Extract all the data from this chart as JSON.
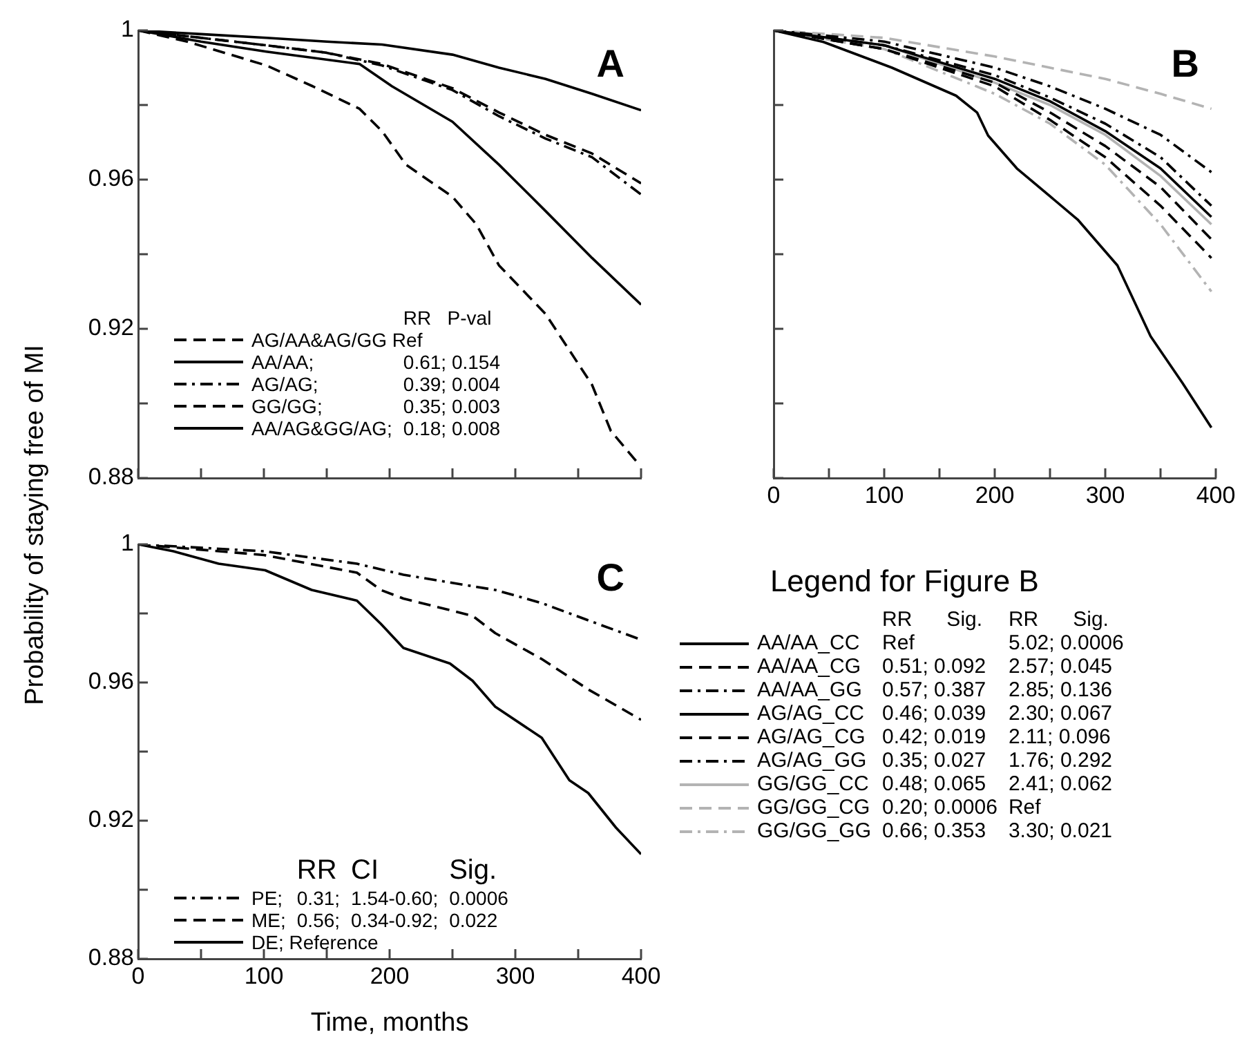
{
  "chart_data": [
    {
      "type": "line",
      "ylabel": "Probability of staying free of MI",
      "annotations": [
        "A",
        "RR   P-val"
      ],
      "legend": "bottom left",
      "tick_labels": "y",
      "grid": false,
      "xlim": [
        0,
        400
      ],
      "xticks": [
        0,
        {
          "value": 50,
          "label": null
        },
        100,
        {
          "value": 150,
          "label": null
        },
        200,
        {
          "value": 250,
          "label": null
        },
        300,
        {
          "value": 350,
          "label": null
        },
        400
      ],
      "ylim": [
        0.88,
        1
      ],
      "yticks": [
        0.88,
        {
          "value": 0.9,
          "label": null
        },
        0.92,
        {
          "value": 0.94,
          "label": null
        },
        0.96,
        {
          "value": 0.98,
          "label": null
        },
        1
      ],
      "series": [
        {
          "name": "AG/AA&AG/GG Ref",
          "color": "#000000",
          "line_style": "dashed",
          "x": [
            0,
            39,
            102,
            139,
            176,
            194,
            213,
            250,
            269,
            287,
            324,
            361,
            376,
            398
          ],
          "values": [
            1,
            0.997,
            0.9906,
            0.985,
            0.979,
            0.973,
            0.964,
            0.9554,
            0.948,
            0.937,
            0.924,
            0.905,
            0.8926,
            0.8838
          ]
        },
        {
          "name": "AA/AA;\t0.61; 0.154",
          "color": "#000000",
          "line_style": "solid",
          "x": [
            0,
            50,
            102,
            176,
            202,
            250,
            287,
            324,
            361,
            400
          ],
          "values": [
            1,
            0.997,
            0.9943,
            0.991,
            0.985,
            0.9755,
            0.964,
            0.9516,
            0.939,
            0.9265
          ]
        },
        {
          "name": "AG/AG;\t0.39; 0.004",
          "color": "#000000",
          "line_style": "dashdot",
          "x": [
            0,
            50,
            102,
            150,
            194,
            250,
            287,
            324,
            361,
            400
          ],
          "values": [
            1,
            0.998,
            0.996,
            0.994,
            0.9906,
            0.984,
            0.977,
            0.971,
            0.966,
            0.956
          ]
        },
        {
          "name": "GG/GG;\t0.35; 0.003",
          "color": "#000000",
          "line_style": "dashed",
          "x": [
            0,
            50,
            102,
            150,
            194,
            250,
            287,
            324,
            361,
            400
          ],
          "values": [
            1,
            0.998,
            0.996,
            0.994,
            0.991,
            0.9845,
            0.978,
            0.972,
            0.967,
            0.959
          ]
        },
        {
          "name": "AA/AG&GG/AG;\t0.18; 0.008",
          "color": "#000000",
          "line_style": "solid",
          "x": [
            0,
            50,
            102,
            150,
            194,
            250,
            287,
            324,
            361,
            400
          ],
          "values": [
            1,
            0.999,
            0.998,
            0.997,
            0.9962,
            0.9935,
            0.99,
            0.987,
            0.983,
            0.9786
          ]
        }
      ]
    },
    {
      "type": "line",
      "annotations": [
        "B",
        "RR      Sig.\tRR      Sig."
      ],
      "legend_title": "Legend for Figure B",
      "legend": "bottom",
      "tick_labels": "x",
      "grid": false,
      "xlim": [
        0,
        400
      ],
      "xticks": [
        0,
        {
          "value": 50,
          "label": null
        },
        100,
        {
          "value": 150,
          "label": null
        },
        200,
        {
          "value": 250,
          "label": null
        },
        300,
        {
          "value": 350,
          "label": null
        },
        400
      ],
      "ylim": [
        0.88,
        1
      ],
      "yticks": [
        0.88,
        {
          "value": 0.9,
          "label": null
        },
        0.92,
        {
          "value": 0.94,
          "label": null
        },
        0.96,
        {
          "value": 0.98,
          "label": null
        },
        1
      ],
      "series": [
        {
          "name": "AA/AA_CC\tRef\t5.02; 0.0006",
          "color": "#000000",
          "line_style": "solid",
          "x": [
            0,
            45,
            107,
            165,
            184,
            194,
            220,
            275,
            311,
            341,
            370,
            396
          ],
          "values": [
            1,
            0.9969,
            0.99,
            0.9825,
            0.978,
            0.9718,
            0.963,
            0.9493,
            0.937,
            0.918,
            0.9054,
            0.8935
          ]
        },
        {
          "name": "AA/AA_CG\t0.51; 0.092\t2.57; 0.045",
          "color": "#000000",
          "line_style": "dashed",
          "x": [
            0,
            100,
            200,
            250,
            300,
            350,
            396
          ],
          "values": [
            1,
            0.995,
            0.986,
            0.978,
            0.969,
            0.958,
            0.944
          ]
        },
        {
          "name": "AA/AA_GG\t0.57; 0.387\t2.85; 0.136",
          "color": "#000000",
          "line_style": "dashdot",
          "x": [
            0,
            100,
            200,
            250,
            300,
            350,
            396
          ],
          "values": [
            1,
            0.996,
            0.988,
            0.982,
            0.975,
            0.966,
            0.953
          ]
        },
        {
          "name": "AG/AG_CC\t0.46; 0.039\t2.30; 0.067",
          "color": "#000000",
          "line_style": "solid",
          "x": [
            0,
            100,
            200,
            250,
            300,
            350,
            396
          ],
          "values": [
            1,
            0.996,
            0.987,
            0.981,
            0.973,
            0.963,
            0.95
          ]
        },
        {
          "name": "AG/AG_CG\t0.42; 0.019\t2.11; 0.096",
          "color": "#000000",
          "line_style": "dashed",
          "x": [
            0,
            100,
            200,
            250,
            300,
            350,
            396
          ],
          "values": [
            1,
            0.995,
            0.985,
            0.976,
            0.966,
            0.953,
            0.939
          ]
        },
        {
          "name": "AG/AG_GG\t0.35; 0.027\t1.76; 0.292",
          "color": "#000000",
          "line_style": "dashdot",
          "x": [
            0,
            100,
            200,
            250,
            300,
            350,
            396
          ],
          "values": [
            1,
            0.997,
            0.99,
            0.985,
            0.979,
            0.972,
            0.962
          ]
        },
        {
          "name": "GG/GG_CC\t0.48; 0.065\t2.41; 0.062",
          "color": "#b3b3b3",
          "line_style": "solid",
          "x": [
            0,
            100,
            200,
            250,
            300,
            350,
            396
          ],
          "values": [
            1,
            0.996,
            0.986,
            0.98,
            0.972,
            0.961,
            0.948
          ]
        },
        {
          "name": "GG/GG_CG\t0.20; 0.0006\tRef",
          "color": "#b3b3b3",
          "line_style": "dashed",
          "x": [
            0,
            100,
            200,
            250,
            300,
            350,
            396
          ],
          "values": [
            1,
            0.998,
            0.993,
            0.99,
            0.987,
            0.983,
            0.979
          ]
        },
        {
          "name": "GG/GG_GG\t0.66; 0.353\t3.30; 0.021",
          "color": "#b3b3b3",
          "line_style": "dashdot",
          "x": [
            0,
            100,
            200,
            250,
            300,
            350,
            396
          ],
          "values": [
            1,
            0.995,
            0.983,
            0.975,
            0.964,
            0.948,
            0.93
          ]
        }
      ]
    },
    {
      "type": "line",
      "xlabel": "Time, months",
      "annotations": [
        "C",
        "RR\tCI\tSig."
      ],
      "legend": "bottom left",
      "grid": false,
      "xlim": [
        0,
        400
      ],
      "xticks": [
        0,
        {
          "value": 50,
          "label": null
        },
        100,
        {
          "value": 150,
          "label": null
        },
        200,
        {
          "value": 250,
          "label": null
        },
        300,
        {
          "value": 350,
          "label": null
        },
        400
      ],
      "ylim": [
        0.88,
        1
      ],
      "yticks": [
        0.88,
        {
          "value": 0.9,
          "label": null
        },
        0.92,
        {
          "value": 0.94,
          "label": null
        },
        0.96,
        {
          "value": 0.98,
          "label": null
        },
        1
      ],
      "series": [
        {
          "name": "PE;\t0.31;\t1.54-0.60;\t0.0006",
          "color": "#000000",
          "line_style": "dashdot",
          "x": [
            0,
            100,
            174,
            211,
            284,
            321,
            358,
            400
          ],
          "values": [
            1,
            0.998,
            0.9944,
            0.9912,
            0.9868,
            0.983,
            0.978,
            0.9724
          ]
        },
        {
          "name": "ME;\t0.56;\t0.34-0.92;\t0.022",
          "color": "#000000",
          "line_style": "dashed",
          "x": [
            0,
            100,
            174,
            193,
            211,
            266,
            284,
            321,
            358,
            400
          ],
          "values": [
            1,
            0.9969,
            0.9918,
            0.9868,
            0.9843,
            0.9793,
            0.9743,
            0.9668,
            0.958,
            0.9492
          ]
        },
        {
          "name": "DE; Reference",
          "color": "#000000",
          "line_style": "solid",
          "x": [
            0,
            28,
            64,
            101,
            138,
            174,
            193,
            211,
            248,
            266,
            284,
            321,
            343,
            358,
            380,
            400
          ],
          "values": [
            1,
            0.998,
            0.9944,
            0.9925,
            0.9868,
            0.9837,
            0.977,
            0.97,
            0.9655,
            0.9605,
            0.953,
            0.944,
            0.9317,
            0.928,
            0.918,
            0.9103
          ]
        }
      ]
    }
  ]
}
